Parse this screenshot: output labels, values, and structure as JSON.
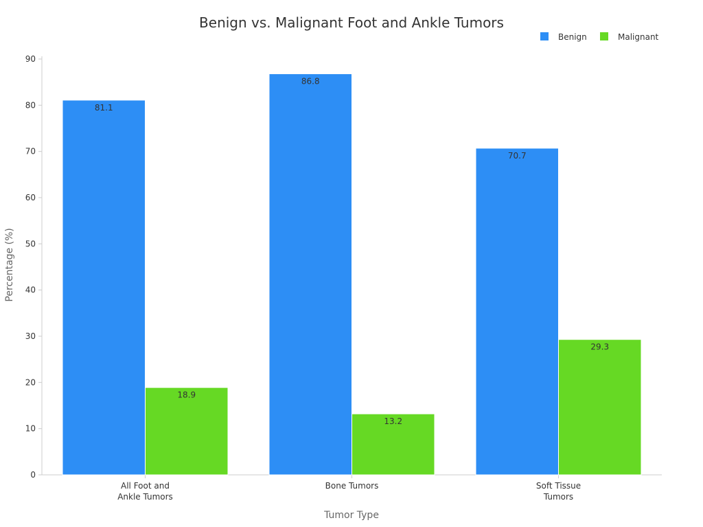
{
  "chart_data": {
    "type": "bar",
    "title": "Benign vs. Malignant Foot and Ankle Tumors",
    "xlabel": "Tumor Type",
    "ylabel": "Percentage (%)",
    "categories": [
      [
        "All Foot and",
        "Ankle Tumors"
      ],
      [
        "Bone Tumors"
      ],
      [
        "Soft Tissue",
        "Tumors"
      ]
    ],
    "series": [
      {
        "name": "Benign",
        "color": "#2d8ef5",
        "values": [
          81.1,
          86.8,
          70.7
        ]
      },
      {
        "name": "Malignant",
        "color": "#66d924",
        "values": [
          18.9,
          13.2,
          29.3
        ]
      }
    ],
    "ylim": [
      0,
      90
    ],
    "yticks": [
      0,
      10,
      20,
      30,
      40,
      50,
      60,
      70,
      80,
      90
    ],
    "grid": false,
    "legend": "top-right",
    "data_labels": true
  }
}
